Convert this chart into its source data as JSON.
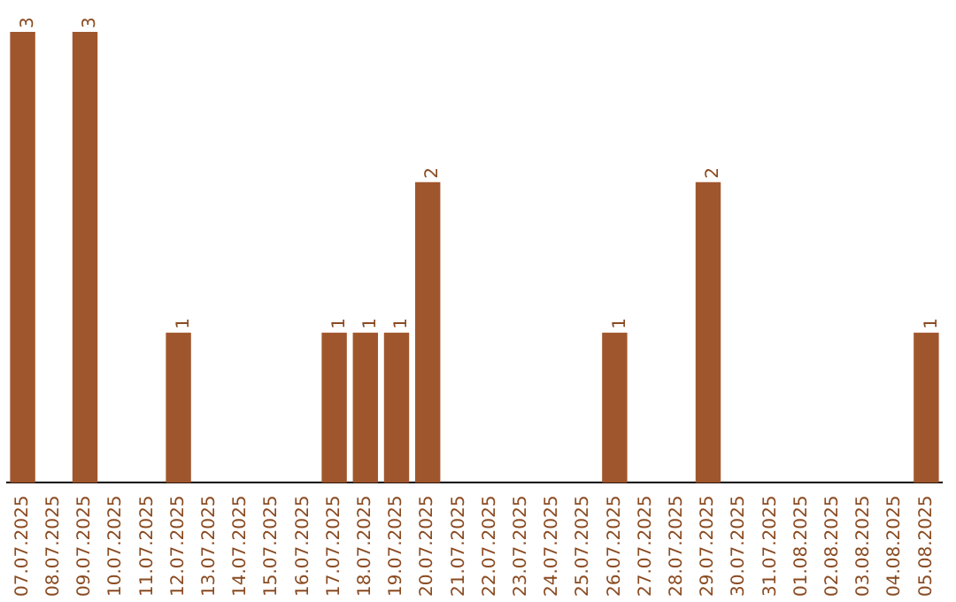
{
  "chart_data": {
    "type": "bar",
    "categories": [
      "07.07.2025",
      "08.07.2025",
      "09.07.2025",
      "10.07.2025",
      "11.07.2025",
      "12.07.2025",
      "13.07.2025",
      "14.07.2025",
      "15.07.2025",
      "16.07.2025",
      "17.07.2025",
      "18.07.2025",
      "19.07.2025",
      "20.07.2025",
      "21.07.2025",
      "22.07.2025",
      "23.07.2025",
      "24.07.2025",
      "25.07.2025",
      "26.07.2025",
      "27.07.2025",
      "28.07.2025",
      "29.07.2025",
      "30.07.2025",
      "31.07.2025",
      "01.08.2025",
      "02.08.2025",
      "03.08.2025",
      "04.08.2025",
      "05.08.2025"
    ],
    "values": [
      3,
      0,
      3,
      0,
      0,
      1,
      0,
      0,
      0,
      0,
      1,
      1,
      1,
      2,
      0,
      0,
      0,
      0,
      0,
      1,
      0,
      0,
      2,
      0,
      0,
      0,
      0,
      0,
      0,
      1
    ],
    "value_labels": [
      "3",
      null,
      "3",
      null,
      null,
      "1",
      null,
      null,
      null,
      null,
      "1",
      "1",
      "1",
      "2",
      null,
      null,
      null,
      null,
      null,
      "1",
      null,
      null,
      "2",
      null,
      null,
      null,
      null,
      null,
      null,
      "1"
    ],
    "color": "#a0562c",
    "tick_labels": "x"
  }
}
